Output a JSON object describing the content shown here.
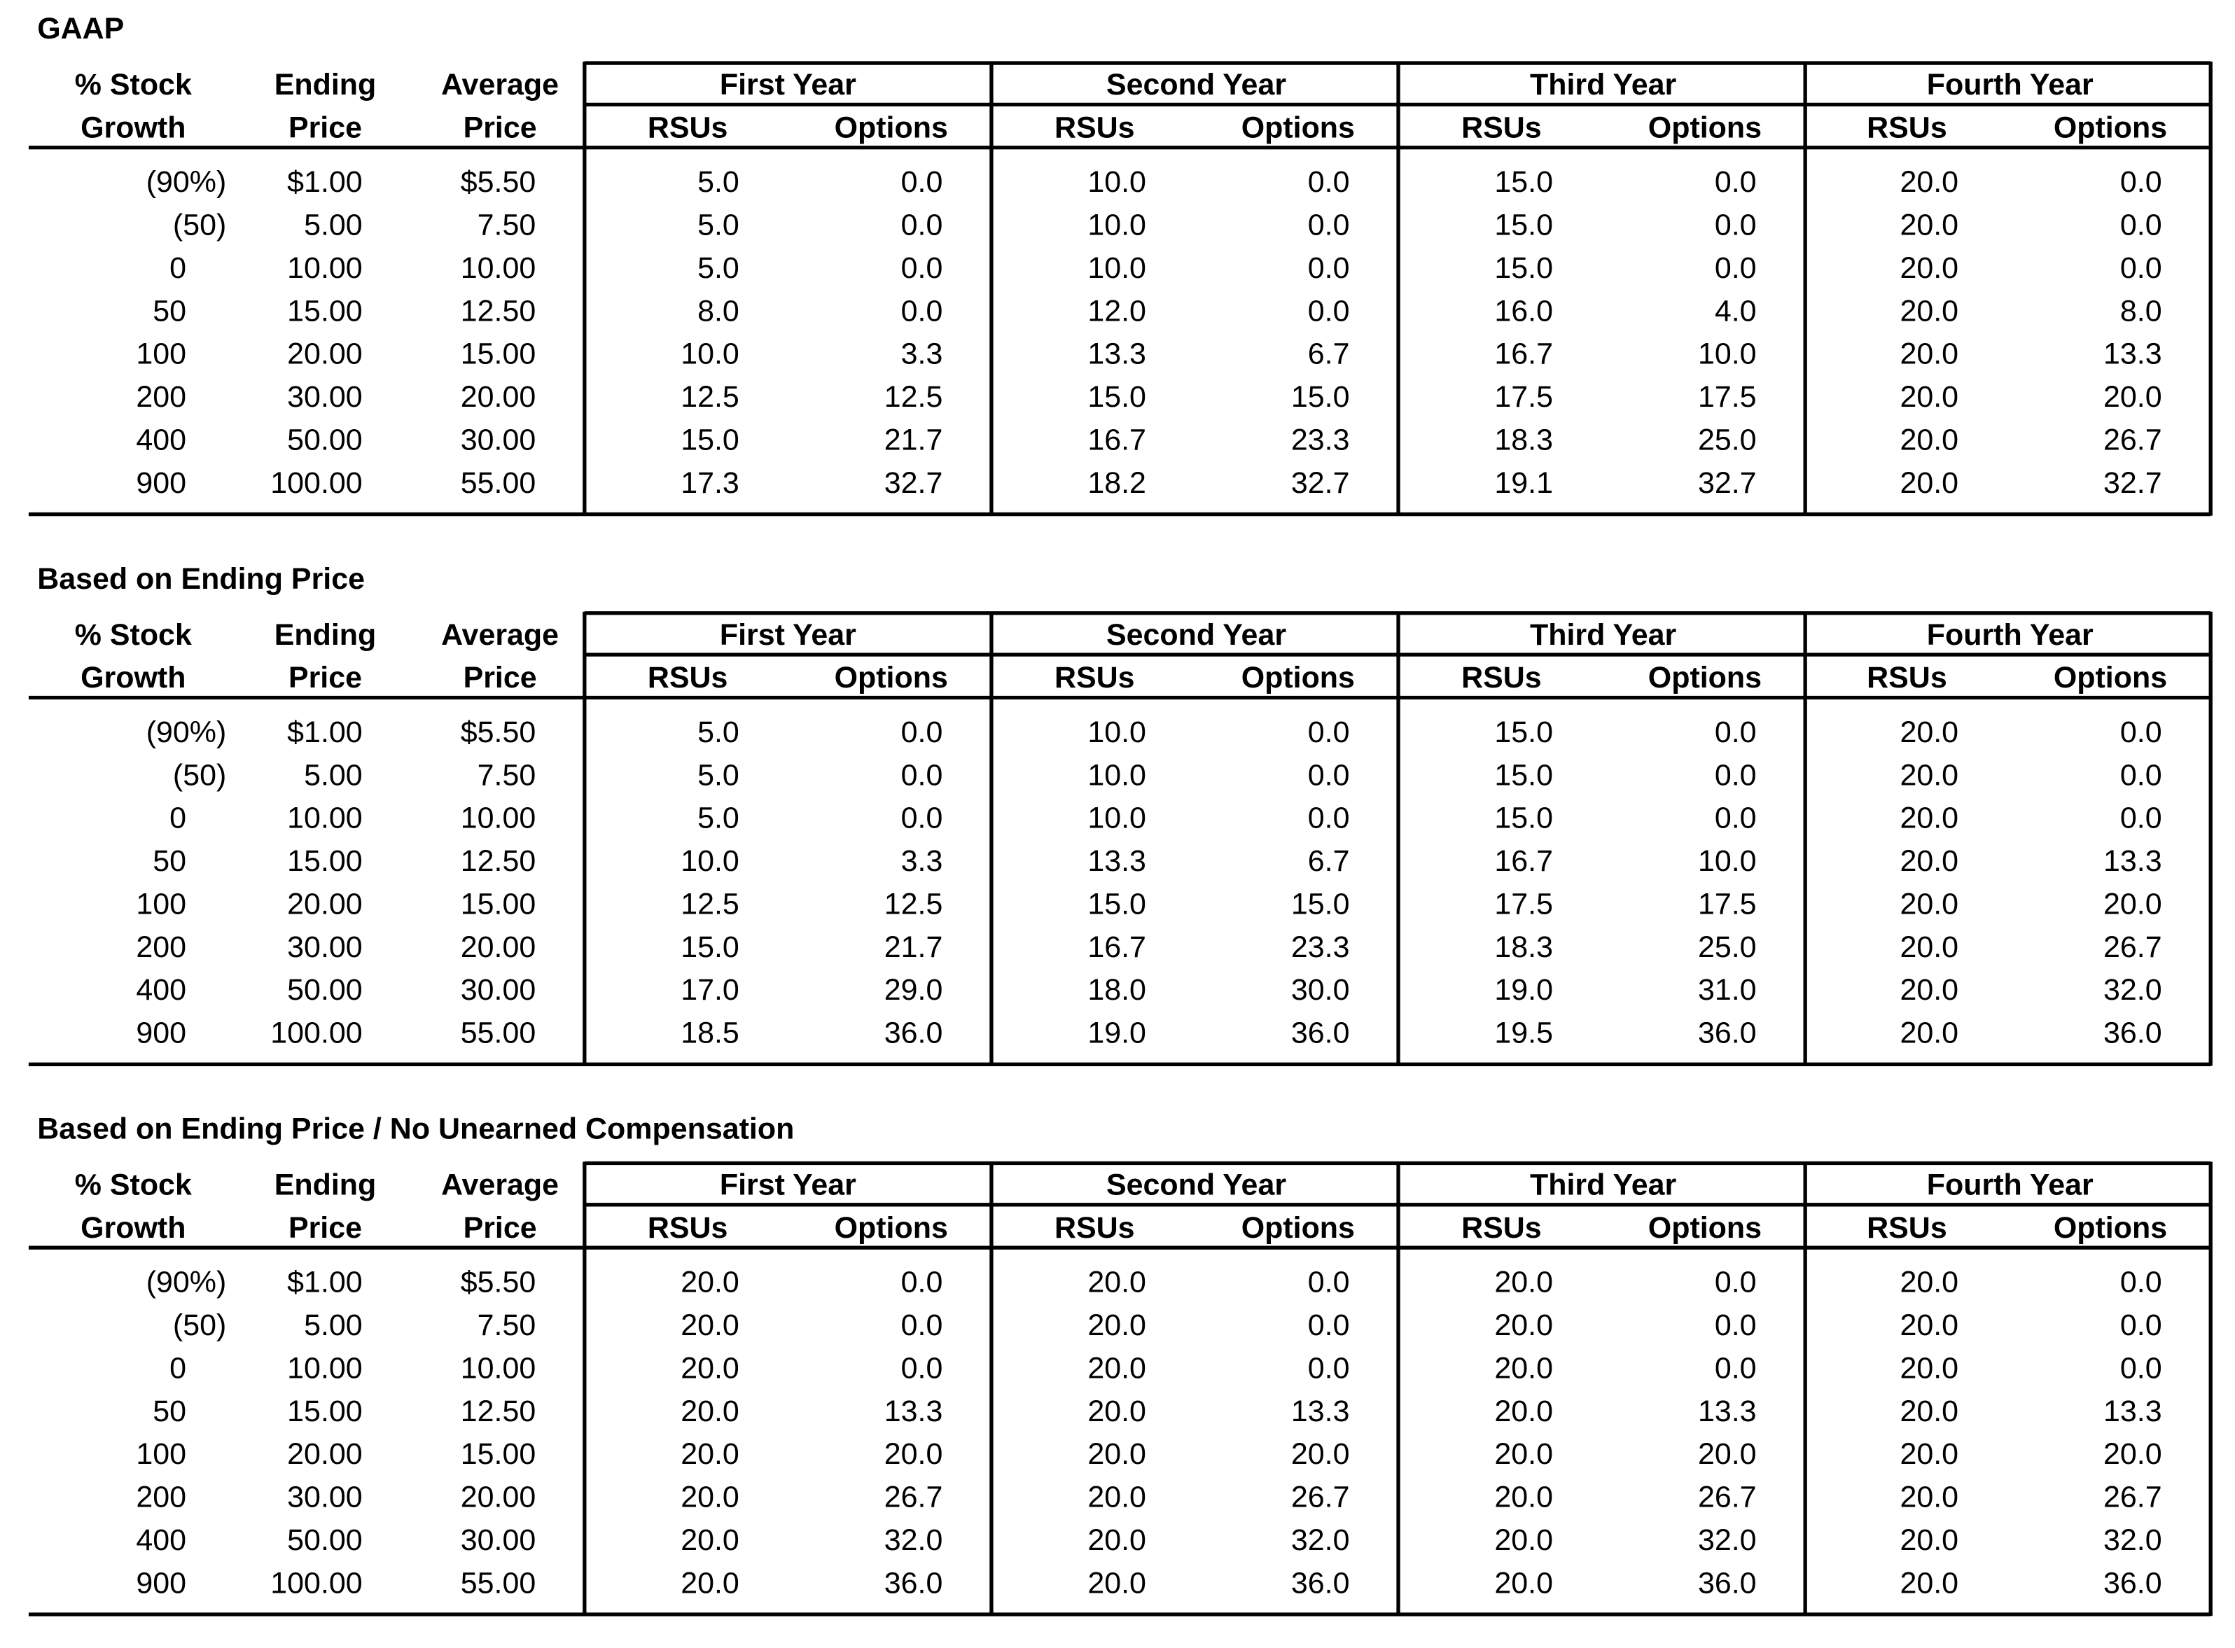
{
  "tables": [
    {
      "title": "GAAP",
      "header_top": [
        "% Stock",
        "Ending",
        "Average"
      ],
      "header_bottom": [
        "Growth",
        "Price",
        "Price"
      ],
      "groups": [
        "First Year",
        "Second Year",
        "Third Year",
        "Fourth Year"
      ],
      "subheaders": [
        "RSUs",
        "Options",
        "RSUs",
        "Options",
        "RSUs",
        "Options",
        "RSUs",
        "Options"
      ],
      "rows": [
        [
          "(90%)",
          "$1.00",
          "$5.50",
          "5.0",
          "0.0",
          "10.0",
          "0.0",
          "15.0",
          "0.0",
          "20.0",
          "0.0"
        ],
        [
          "(50)",
          "5.00",
          "7.50",
          "5.0",
          "0.0",
          "10.0",
          "0.0",
          "15.0",
          "0.0",
          "20.0",
          "0.0"
        ],
        [
          "0",
          "10.00",
          "10.00",
          "5.0",
          "0.0",
          "10.0",
          "0.0",
          "15.0",
          "0.0",
          "20.0",
          "0.0"
        ],
        [
          "50",
          "15.00",
          "12.50",
          "8.0",
          "0.0",
          "12.0",
          "0.0",
          "16.0",
          "4.0",
          "20.0",
          "8.0"
        ],
        [
          "100",
          "20.00",
          "15.00",
          "10.0",
          "3.3",
          "13.3",
          "6.7",
          "16.7",
          "10.0",
          "20.0",
          "13.3"
        ],
        [
          "200",
          "30.00",
          "20.00",
          "12.5",
          "12.5",
          "15.0",
          "15.0",
          "17.5",
          "17.5",
          "20.0",
          "20.0"
        ],
        [
          "400",
          "50.00",
          "30.00",
          "15.0",
          "21.7",
          "16.7",
          "23.3",
          "18.3",
          "25.0",
          "20.0",
          "26.7"
        ],
        [
          "900",
          "100.00",
          "55.00",
          "17.3",
          "32.7",
          "18.2",
          "32.7",
          "19.1",
          "32.7",
          "20.0",
          "32.7"
        ]
      ]
    },
    {
      "title": "Based on Ending Price",
      "header_top": [
        "% Stock",
        "Ending",
        "Average"
      ],
      "header_bottom": [
        "Growth",
        "Price",
        "Price"
      ],
      "groups": [
        "First Year",
        "Second Year",
        "Third Year",
        "Fourth Year"
      ],
      "subheaders": [
        "RSUs",
        "Options",
        "RSUs",
        "Options",
        "RSUs",
        "Options",
        "RSUs",
        "Options"
      ],
      "rows": [
        [
          "(90%)",
          "$1.00",
          "$5.50",
          "5.0",
          "0.0",
          "10.0",
          "0.0",
          "15.0",
          "0.0",
          "20.0",
          "0.0"
        ],
        [
          "(50)",
          "5.00",
          "7.50",
          "5.0",
          "0.0",
          "10.0",
          "0.0",
          "15.0",
          "0.0",
          "20.0",
          "0.0"
        ],
        [
          "0",
          "10.00",
          "10.00",
          "5.0",
          "0.0",
          "10.0",
          "0.0",
          "15.0",
          "0.0",
          "20.0",
          "0.0"
        ],
        [
          "50",
          "15.00",
          "12.50",
          "10.0",
          "3.3",
          "13.3",
          "6.7",
          "16.7",
          "10.0",
          "20.0",
          "13.3"
        ],
        [
          "100",
          "20.00",
          "15.00",
          "12.5",
          "12.5",
          "15.0",
          "15.0",
          "17.5",
          "17.5",
          "20.0",
          "20.0"
        ],
        [
          "200",
          "30.00",
          "20.00",
          "15.0",
          "21.7",
          "16.7",
          "23.3",
          "18.3",
          "25.0",
          "20.0",
          "26.7"
        ],
        [
          "400",
          "50.00",
          "30.00",
          "17.0",
          "29.0",
          "18.0",
          "30.0",
          "19.0",
          "31.0",
          "20.0",
          "32.0"
        ],
        [
          "900",
          "100.00",
          "55.00",
          "18.5",
          "36.0",
          "19.0",
          "36.0",
          "19.5",
          "36.0",
          "20.0",
          "36.0"
        ]
      ]
    },
    {
      "title": "Based on Ending Price / No Unearned Compensation",
      "header_top": [
        "% Stock",
        "Ending",
        "Average"
      ],
      "header_bottom": [
        "Growth",
        "Price",
        "Price"
      ],
      "groups": [
        "First Year",
        "Second Year",
        "Third Year",
        "Fourth Year"
      ],
      "subheaders": [
        "RSUs",
        "Options",
        "RSUs",
        "Options",
        "RSUs",
        "Options",
        "RSUs",
        "Options"
      ],
      "rows": [
        [
          "(90%)",
          "$1.00",
          "$5.50",
          "20.0",
          "0.0",
          "20.0",
          "0.0",
          "20.0",
          "0.0",
          "20.0",
          "0.0"
        ],
        [
          "(50)",
          "5.00",
          "7.50",
          "20.0",
          "0.0",
          "20.0",
          "0.0",
          "20.0",
          "0.0",
          "20.0",
          "0.0"
        ],
        [
          "0",
          "10.00",
          "10.00",
          "20.0",
          "0.0",
          "20.0",
          "0.0",
          "20.0",
          "0.0",
          "20.0",
          "0.0"
        ],
        [
          "50",
          "15.00",
          "12.50",
          "20.0",
          "13.3",
          "20.0",
          "13.3",
          "20.0",
          "13.3",
          "20.0",
          "13.3"
        ],
        [
          "100",
          "20.00",
          "15.00",
          "20.0",
          "20.0",
          "20.0",
          "20.0",
          "20.0",
          "20.0",
          "20.0",
          "20.0"
        ],
        [
          "200",
          "30.00",
          "20.00",
          "20.0",
          "26.7",
          "20.0",
          "26.7",
          "20.0",
          "26.7",
          "20.0",
          "26.7"
        ],
        [
          "400",
          "50.00",
          "30.00",
          "20.0",
          "32.0",
          "20.0",
          "32.0",
          "20.0",
          "32.0",
          "20.0",
          "32.0"
        ],
        [
          "900",
          "100.00",
          "55.00",
          "20.0",
          "36.0",
          "20.0",
          "36.0",
          "20.0",
          "36.0",
          "20.0",
          "36.0"
        ]
      ]
    }
  ]
}
